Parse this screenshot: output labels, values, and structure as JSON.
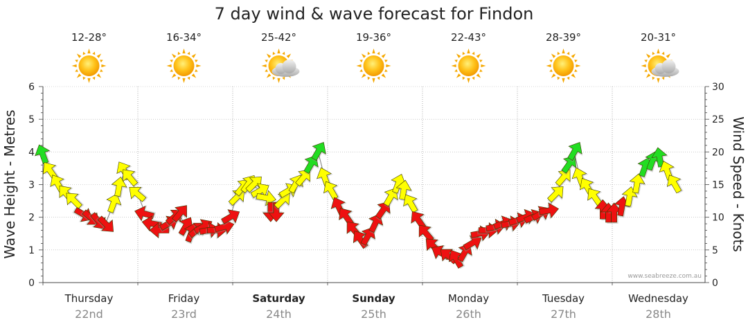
{
  "chart_data": {
    "type": "scatter",
    "title": "7 day wind & wave forecast for Findon",
    "ylabel_left": "Wave Height - Metres",
    "ylabel_right": "Wind Speed - Knots",
    "ylim_left": [
      0,
      6
    ],
    "ylim_right": [
      0,
      30
    ],
    "yticks_left": [
      "0",
      "1",
      "2",
      "3",
      "4",
      "5",
      "6"
    ],
    "yticks_right": [
      "0",
      "5",
      "10",
      "15",
      "20",
      "25",
      "30"
    ],
    "grid": true,
    "watermark": "www.seabreeze.com.au",
    "days": [
      {
        "name": "Thursday",
        "date": "22nd",
        "bold": false,
        "temp": "12-28°",
        "weather": "sun"
      },
      {
        "name": "Friday",
        "date": "23rd",
        "bold": false,
        "temp": "16-34°",
        "weather": "sun"
      },
      {
        "name": "Saturday",
        "date": "24th",
        "bold": true,
        "temp": "25-42°",
        "weather": "sun-cloud"
      },
      {
        "name": "Sunday",
        "date": "25th",
        "bold": true,
        "temp": "19-36°",
        "weather": "sun"
      },
      {
        "name": "Monday",
        "date": "26th",
        "bold": false,
        "temp": "22-43°",
        "weather": "sun"
      },
      {
        "name": "Tuesday",
        "date": "27th",
        "bold": false,
        "temp": "28-39°",
        "weather": "sun"
      },
      {
        "name": "Wednesday",
        "date": "28th",
        "bold": false,
        "temp": "20-31°",
        "weather": "sun-cloud"
      }
    ],
    "wind_colors": {
      "low": "#22dd22",
      "mid": "#ffff00",
      "high": "#ee1111"
    },
    "wind": [
      {
        "t": 0.0,
        "knots": 19.5,
        "dir": -20
      },
      {
        "t": 0.08,
        "knots": 17,
        "dir": -35
      },
      {
        "t": 0.16,
        "knots": 15,
        "dir": -30
      },
      {
        "t": 0.25,
        "knots": 13.5,
        "dir": -40
      },
      {
        "t": 0.33,
        "knots": 12.5,
        "dir": -45
      },
      {
        "t": 0.42,
        "knots": 10.5,
        "dir": 120
      },
      {
        "t": 0.5,
        "knots": 10,
        "dir": 130
      },
      {
        "t": 0.58,
        "knots": 9.5,
        "dir": 140
      },
      {
        "t": 0.66,
        "knots": 9,
        "dir": 135
      },
      {
        "t": 0.74,
        "knots": 12,
        "dir": 20
      },
      {
        "t": 0.8,
        "knots": 14.5,
        "dir": 10
      },
      {
        "t": 0.86,
        "knots": 17,
        "dir": -30
      },
      {
        "t": 0.92,
        "knots": 16,
        "dir": -40
      },
      {
        "t": 1.0,
        "knots": 13.5,
        "dir": -50
      },
      {
        "t": 1.08,
        "knots": 10.5,
        "dir": -75
      },
      {
        "t": 1.16,
        "knots": 9,
        "dir": -80
      },
      {
        "t": 1.24,
        "knots": 8,
        "dir": -90
      },
      {
        "t": 1.32,
        "knots": 9,
        "dir": 60
      },
      {
        "t": 1.38,
        "knots": 10,
        "dir": 50
      },
      {
        "t": 1.44,
        "knots": 10.5,
        "dir": 40
      },
      {
        "t": 1.5,
        "knots": 8.5,
        "dir": 30
      },
      {
        "t": 1.56,
        "knots": 7.5,
        "dir": 20
      },
      {
        "t": 1.62,
        "knots": 8,
        "dir": 50
      },
      {
        "t": 1.68,
        "knots": 8.5,
        "dir": 60
      },
      {
        "t": 1.74,
        "knots": 8,
        "dir": 80
      },
      {
        "t": 1.82,
        "knots": 8,
        "dir": 90
      },
      {
        "t": 1.9,
        "knots": 8.5,
        "dir": 75
      },
      {
        "t": 1.97,
        "knots": 10,
        "dir": 60
      },
      {
        "t": 2.04,
        "knots": 13,
        "dir": 45
      },
      {
        "t": 2.1,
        "knots": 14.5,
        "dir": 40
      },
      {
        "t": 2.16,
        "knots": 15,
        "dir": 35
      },
      {
        "t": 2.22,
        "knots": 15,
        "dir": 45
      },
      {
        "t": 2.28,
        "knots": 14,
        "dir": 60
      },
      {
        "t": 2.34,
        "knots": 13,
        "dir": 100
      },
      {
        "t": 2.4,
        "knots": 11,
        "dir": 180
      },
      {
        "t": 2.46,
        "knots": 11,
        "dir": 180
      },
      {
        "t": 2.52,
        "knots": 12.5,
        "dir": 45
      },
      {
        "t": 2.58,
        "knots": 14,
        "dir": 60
      },
      {
        "t": 2.66,
        "knots": 15,
        "dir": 30
      },
      {
        "t": 2.74,
        "knots": 16,
        "dir": 40
      },
      {
        "t": 2.82,
        "knots": 18,
        "dir": 30
      },
      {
        "t": 2.9,
        "knots": 20,
        "dir": 30
      },
      {
        "t": 2.97,
        "knots": 16,
        "dir": -20
      },
      {
        "t": 3.04,
        "knots": 14,
        "dir": -30
      },
      {
        "t": 3.12,
        "knots": 11.5,
        "dir": -25
      },
      {
        "t": 3.2,
        "knots": 10,
        "dir": -35
      },
      {
        "t": 3.28,
        "knots": 8,
        "dir": -40
      },
      {
        "t": 3.35,
        "knots": 6.5,
        "dir": -35
      },
      {
        "t": 3.42,
        "knots": 7,
        "dir": 30
      },
      {
        "t": 3.5,
        "knots": 9,
        "dir": 25
      },
      {
        "t": 3.58,
        "knots": 11,
        "dir": 35
      },
      {
        "t": 3.66,
        "knots": 13,
        "dir": 30
      },
      {
        "t": 3.74,
        "knots": 15,
        "dir": 20
      },
      {
        "t": 3.8,
        "knots": 14,
        "dir": 10
      },
      {
        "t": 3.88,
        "knots": 12,
        "dir": -30
      },
      {
        "t": 3.96,
        "knots": 9.5,
        "dir": -35
      },
      {
        "t": 4.04,
        "knots": 7.5,
        "dir": -40
      },
      {
        "t": 4.12,
        "knots": 5.5,
        "dir": -45
      },
      {
        "t": 4.2,
        "knots": 4.5,
        "dir": -60
      },
      {
        "t": 4.28,
        "knots": 4,
        "dir": -50
      },
      {
        "t": 4.36,
        "knots": 3.5,
        "dir": -30
      },
      {
        "t": 4.44,
        "knots": 4.5,
        "dir": 30
      },
      {
        "t": 4.52,
        "knots": 6,
        "dir": 60
      },
      {
        "t": 4.6,
        "knots": 7.5,
        "dir": 80
      },
      {
        "t": 4.68,
        "knots": 8,
        "dir": 90
      },
      {
        "t": 4.76,
        "knots": 8.5,
        "dir": 80
      },
      {
        "t": 4.84,
        "knots": 9,
        "dir": 70
      },
      {
        "t": 4.92,
        "knots": 9,
        "dir": 80
      },
      {
        "t": 5.0,
        "knots": 9.5,
        "dir": 75
      },
      {
        "t": 5.08,
        "knots": 10,
        "dir": 70
      },
      {
        "t": 5.16,
        "knots": 10,
        "dir": 65
      },
      {
        "t": 5.24,
        "knots": 10.5,
        "dir": 60
      },
      {
        "t": 5.32,
        "knots": 11,
        "dir": 80
      },
      {
        "t": 5.4,
        "knots": 13.5,
        "dir": 45
      },
      {
        "t": 5.48,
        "knots": 16,
        "dir": 40
      },
      {
        "t": 5.54,
        "knots": 18,
        "dir": 35
      },
      {
        "t": 5.6,
        "knots": 20,
        "dir": 30
      },
      {
        "t": 5.66,
        "knots": 16,
        "dir": -20
      },
      {
        "t": 5.74,
        "knots": 14.5,
        "dir": -30
      },
      {
        "t": 5.82,
        "knots": 13,
        "dir": -35
      },
      {
        "t": 5.9,
        "knots": 11,
        "dir": 0
      },
      {
        "t": 5.96,
        "knots": 10.5,
        "dir": 0
      },
      {
        "t": 6.02,
        "knots": 10.5,
        "dir": 0
      },
      {
        "t": 6.1,
        "knots": 11.5,
        "dir": 10
      },
      {
        "t": 6.18,
        "knots": 13,
        "dir": 10
      },
      {
        "t": 6.26,
        "knots": 15,
        "dir": 10
      },
      {
        "t": 6.34,
        "knots": 17.5,
        "dir": 20
      },
      {
        "t": 6.42,
        "knots": 18.5,
        "dir": 20
      },
      {
        "t": 6.5,
        "knots": 19,
        "dir": -10
      },
      {
        "t": 6.58,
        "knots": 17,
        "dir": -20
      },
      {
        "t": 6.66,
        "knots": 15,
        "dir": -30
      }
    ]
  }
}
